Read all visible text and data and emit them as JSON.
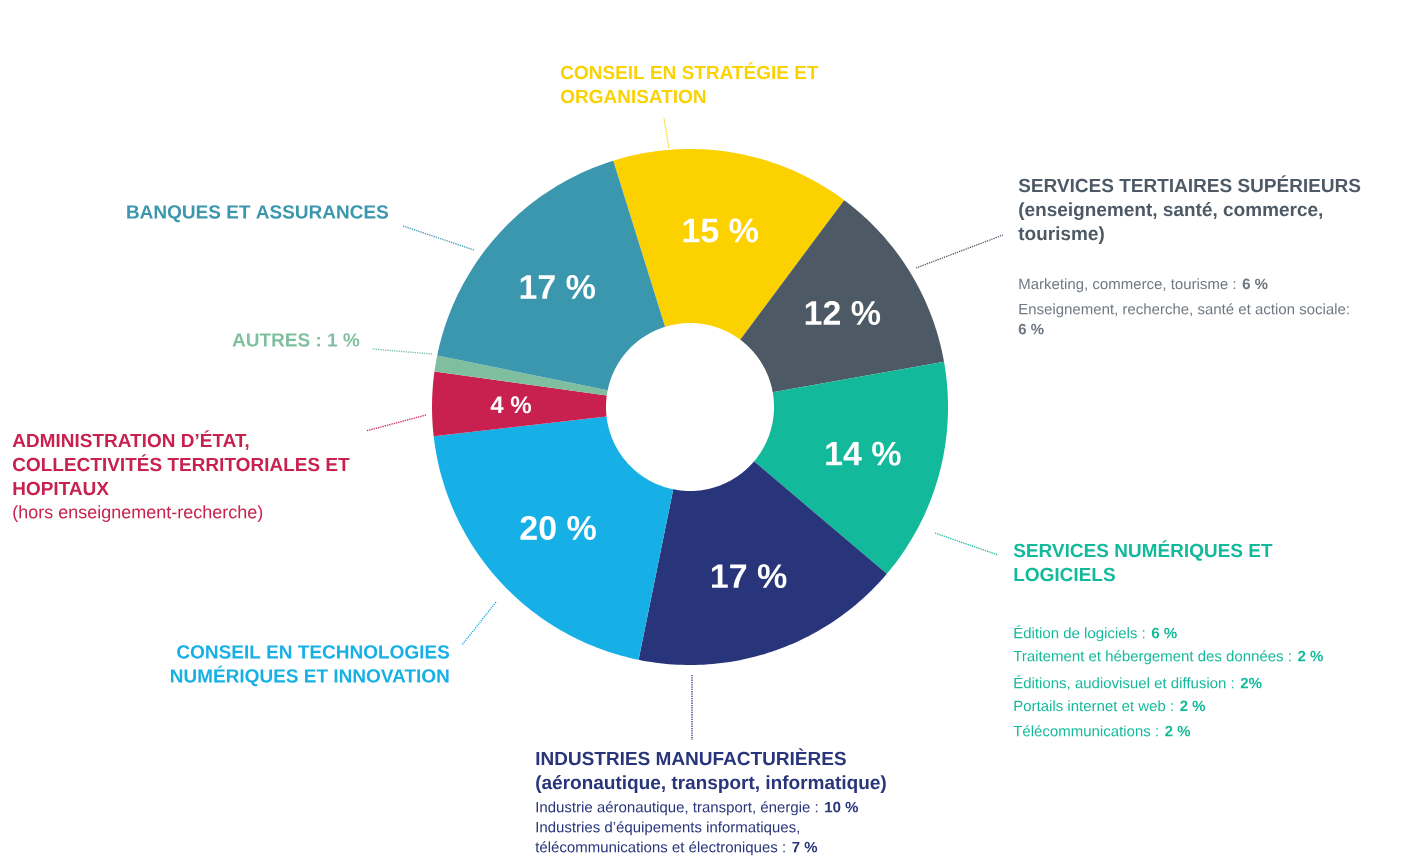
{
  "chart_data": {
    "type": "donut",
    "categories": [
      "CONSEIL EN STRATÉGIE ET ORGANISATION",
      "SERVICES TERTIAIRES SUPÉRIEURS (enseignement, santé, commerce, tourisme)",
      "SERVICES NUMÉRIQUES ET LOGICIELS",
      "INDUSTRIES MANUFACTURIÈRES (aéronautique, transport, informatique)",
      "CONSEIL EN TECHNOLOGIES NUMÉRIQUES ET INNOVATION",
      "ADMINISTRATION D’ÉTAT, COLLECTIVITÉS TERRITORIALES ET HOPITAUX",
      "AUTRES : 1 %",
      "BANQUES ET ASSURANCES"
    ],
    "values": [
      15,
      12,
      14,
      17,
      20,
      4,
      1,
      17
    ],
    "colors": [
      "#fcd100",
      "#4d5a66",
      "#12b99a",
      "#29357b",
      "#17b0e6",
      "#c8214f",
      "#7fbf9f",
      "#3b97ae"
    ],
    "value_labels": [
      "15 %",
      "12 %",
      "14 %",
      "17 %",
      "20 %",
      "4 %",
      null,
      "17 %"
    ],
    "annotations": [
      "Marketing, commerce, tourisme : **6 %**",
      "Enseignement, recherche, santé et action sociale: **6 %**",
      "Édition de logiciels : **6 %**",
      "Traitement et hébergement des données : **2 %**",
      "Éditions, audiovisuel et diffusion : **2%**",
      "Portails internet et web : **2 %**",
      "Télécommunications : **2 %**",
      "Industrie aéronautique, transport, énergie : **10 %**",
      "Industries d’équipements informatiques, télécommunications et électroniques : **7 %**",
      "(hors enseignement-recherche)"
    ]
  }
}
